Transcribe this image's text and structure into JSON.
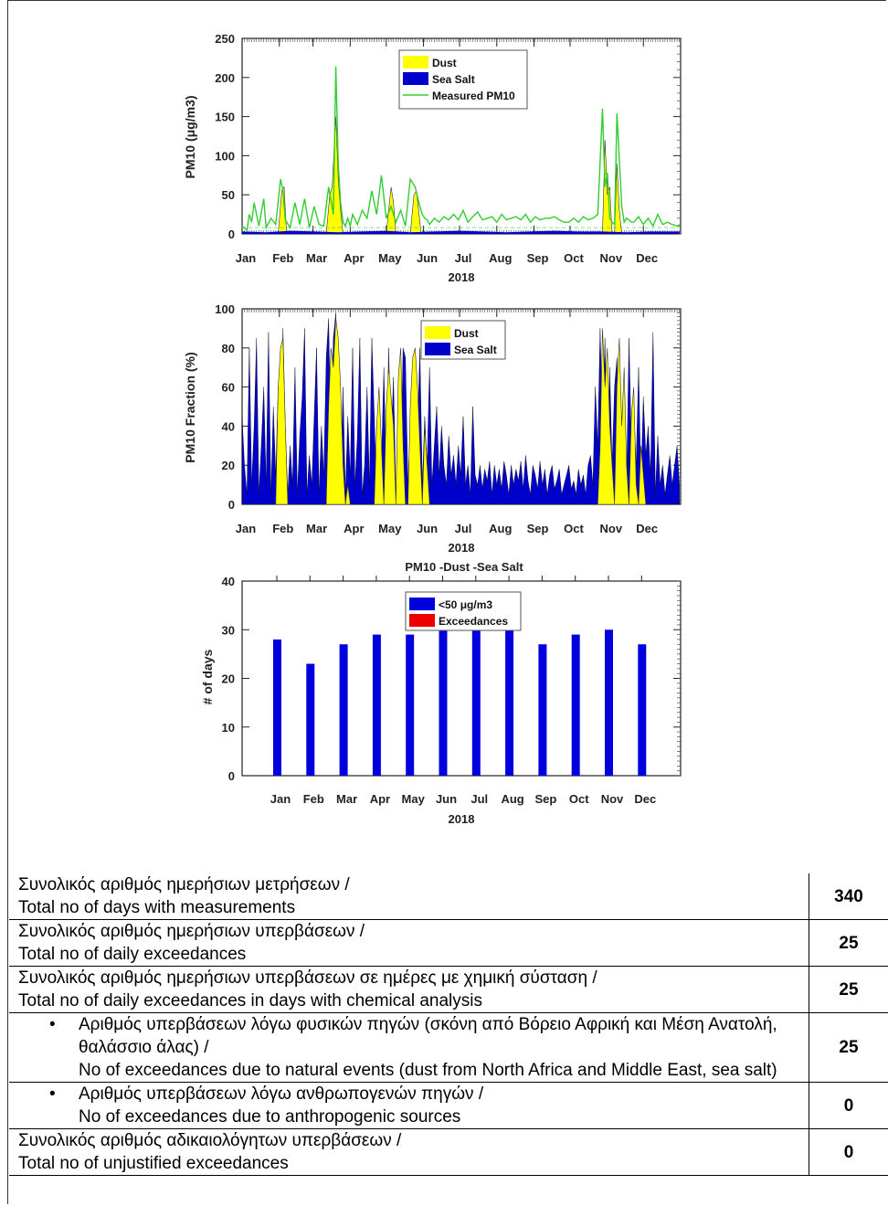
{
  "months": [
    "Jan",
    "Feb",
    "Mar",
    "Apr",
    "May",
    "Jun",
    "Jul",
    "Aug",
    "Sep",
    "Oct",
    "Nov",
    "Dec"
  ],
  "year": "2018",
  "colors": {
    "dust": "#ffff00",
    "sea_salt": "#0000cc",
    "measured": "#33cc33",
    "under50": "#0000dd",
    "exceed": "#ee0000"
  },
  "chart_data": [
    {
      "type": "area",
      "ylabel": "PM10 (μg/m3)",
      "xlabel": "2018",
      "ylim": [
        0,
        250
      ],
      "yticks": [
        0,
        50,
        100,
        150,
        200,
        250
      ],
      "legend": [
        "Dust",
        "Sea Salt",
        "Measured PM10"
      ],
      "legend_position": "top-center",
      "series": [
        {
          "name": "Measured PM10",
          "x": [
            0,
            4,
            6,
            8,
            10,
            14,
            18,
            20,
            24,
            28,
            32,
            34,
            36,
            40,
            44,
            48,
            52,
            56,
            60,
            64,
            68,
            72,
            76,
            78,
            80,
            82,
            84,
            86,
            88,
            90,
            92,
            96,
            100,
            104,
            108,
            112,
            116,
            120,
            124,
            128,
            132,
            136,
            140,
            144,
            148,
            150,
            152,
            154,
            156,
            160,
            164,
            168,
            172,
            176,
            180,
            184,
            188,
            192,
            196,
            200,
            204,
            208,
            212,
            216,
            220,
            224,
            228,
            232,
            236,
            240,
            244,
            248,
            252,
            256,
            260,
            264,
            268,
            272,
            276,
            280,
            284,
            288,
            292,
            296,
            300,
            302,
            304,
            306,
            308,
            310,
            312,
            316,
            318,
            320,
            322,
            324,
            326,
            330,
            334,
            338,
            342,
            346,
            350,
            354,
            358,
            362,
            364
          ],
          "y": [
            10,
            5,
            25,
            15,
            40,
            10,
            45,
            8,
            20,
            12,
            70,
            55,
            18,
            8,
            40,
            12,
            45,
            8,
            35,
            12,
            10,
            60,
            25,
            214,
            90,
            40,
            15,
            10,
            20,
            10,
            25,
            12,
            30,
            20,
            55,
            25,
            75,
            20,
            35,
            15,
            30,
            10,
            70,
            60,
            35,
            25,
            20,
            18,
            12,
            20,
            15,
            22,
            18,
            25,
            18,
            30,
            15,
            22,
            28,
            18,
            20,
            22,
            15,
            25,
            18,
            20,
            22,
            18,
            25,
            15,
            22,
            18,
            20,
            20,
            22,
            18,
            15,
            15,
            20,
            15,
            22,
            18,
            20,
            25,
            160,
            60,
            78,
            20,
            15,
            12,
            154,
            35,
            15,
            20,
            18,
            15,
            15,
            22,
            12,
            20,
            10,
            25,
            12,
            15,
            12,
            10,
            12
          ]
        },
        {
          "name": "Dust",
          "x": [
            0,
            30,
            33,
            35,
            37,
            70,
            73,
            75,
            78,
            80,
            82,
            84,
            120,
            122,
            124,
            126,
            128,
            140,
            143,
            145,
            147,
            149,
            300,
            302,
            304,
            306,
            308,
            310,
            312,
            314,
            316
          ],
          "y": [
            0,
            0,
            55,
            60,
            0,
            0,
            50,
            60,
            150,
            70,
            30,
            0,
            0,
            30,
            60,
            40,
            0,
            0,
            50,
            55,
            30,
            0,
            0,
            120,
            50,
            60,
            0,
            0,
            90,
            30,
            0
          ]
        },
        {
          "name": "Sea Salt",
          "x": [
            0,
            20,
            40,
            60,
            80,
            100,
            120,
            140,
            160,
            180,
            200,
            220,
            240,
            260,
            280,
            300,
            320,
            340,
            364
          ],
          "y": [
            3,
            2,
            4,
            3,
            2,
            3,
            4,
            2,
            3,
            4,
            3,
            2,
            3,
            4,
            3,
            3,
            2,
            3,
            3
          ]
        }
      ]
    },
    {
      "type": "area",
      "ylabel": "PM10 Fraction (%)",
      "xlabel": "2018",
      "ylim": [
        0,
        100
      ],
      "yticks": [
        0,
        20,
        40,
        60,
        80,
        100
      ],
      "legend": [
        "Dust",
        "Sea Salt"
      ],
      "legend_position": "top-center",
      "series": [
        {
          "name": "Sea Salt",
          "x": [
            0,
            2,
            4,
            6,
            8,
            10,
            12,
            14,
            16,
            18,
            20,
            22,
            24,
            26,
            28,
            30,
            32,
            34,
            36,
            38,
            40,
            42,
            44,
            46,
            48,
            50,
            52,
            54,
            56,
            58,
            60,
            62,
            64,
            66,
            68,
            70,
            72,
            74,
            76,
            78,
            80,
            82,
            84,
            86,
            88,
            90,
            92,
            94,
            96,
            98,
            100,
            102,
            104,
            106,
            108,
            110,
            112,
            114,
            116,
            118,
            120,
            122,
            124,
            126,
            128,
            130,
            132,
            134,
            136,
            138,
            140,
            142,
            144,
            146,
            148,
            150,
            152,
            154,
            156,
            158,
            160,
            162,
            164,
            166,
            168,
            170,
            172,
            174,
            176,
            178,
            180,
            182,
            184,
            186,
            188,
            190,
            192,
            194,
            196,
            198,
            200,
            202,
            204,
            206,
            208,
            210,
            212,
            214,
            216,
            218,
            220,
            222,
            224,
            226,
            228,
            230,
            232,
            234,
            236,
            238,
            240,
            242,
            244,
            246,
            248,
            250,
            252,
            254,
            256,
            258,
            260,
            262,
            264,
            266,
            268,
            270,
            272,
            274,
            276,
            278,
            280,
            282,
            284,
            286,
            288,
            290,
            292,
            294,
            296,
            298,
            300,
            302,
            304,
            306,
            308,
            310,
            312,
            314,
            316,
            318,
            320,
            322,
            324,
            326,
            328,
            330,
            332,
            334,
            336,
            338,
            340,
            342,
            344,
            346,
            348,
            350,
            352,
            354,
            356,
            358,
            360,
            362,
            364
          ],
          "y": [
            45,
            20,
            5,
            80,
            10,
            40,
            85,
            5,
            30,
            60,
            10,
            88,
            5,
            50,
            15,
            60,
            10,
            90,
            40,
            5,
            30,
            10,
            70,
            5,
            35,
            55,
            90,
            5,
            25,
            10,
            45,
            80,
            5,
            40,
            15,
            75,
            95,
            30,
            85,
            98,
            40,
            10,
            60,
            5,
            45,
            15,
            80,
            10,
            35,
            85,
            5,
            20,
            60,
            10,
            85,
            45,
            5,
            55,
            20,
            70,
            10,
            80,
            30,
            65,
            5,
            40,
            15,
            80,
            75,
            10,
            40,
            60,
            5,
            35,
            80,
            10,
            45,
            20,
            70,
            10,
            30,
            50,
            15,
            40,
            20,
            10,
            35,
            15,
            25,
            10,
            30,
            15,
            45,
            10,
            20,
            5,
            50,
            15,
            10,
            20,
            8,
            18,
            12,
            22,
            5,
            20,
            10,
            18,
            8,
            22,
            15,
            5,
            20,
            10,
            18,
            12,
            22,
            8,
            25,
            12,
            5,
            20,
            15,
            8,
            22,
            10,
            18,
            5,
            15,
            20,
            8,
            12,
            18,
            5,
            10,
            15,
            20,
            8,
            12,
            5,
            18,
            10,
            15,
            5,
            20,
            25,
            10,
            60,
            30,
            90,
            40,
            85,
            10,
            70,
            20,
            60,
            75,
            15,
            40,
            65,
            10,
            85,
            30,
            50,
            20,
            70,
            10,
            55,
            25,
            40,
            15,
            88,
            5,
            35,
            10,
            20,
            5,
            15,
            25,
            10,
            20,
            30,
            10
          ]
        },
        {
          "name": "Dust",
          "x": [
            0,
            28,
            30,
            32,
            34,
            36,
            38,
            70,
            72,
            74,
            76,
            78,
            80,
            82,
            84,
            86,
            88,
            90,
            110,
            112,
            114,
            116,
            118,
            120,
            122,
            124,
            126,
            128,
            130,
            132,
            134,
            136,
            138,
            140,
            142,
            144,
            146,
            148,
            150,
            152,
            154,
            156,
            296,
            298,
            300,
            302,
            304,
            306,
            308,
            310,
            312,
            314,
            316,
            318,
            320,
            322,
            324,
            326,
            328,
            330,
            332,
            334,
            336
          ],
          "y": [
            0,
            0,
            60,
            80,
            85,
            40,
            0,
            0,
            50,
            80,
            70,
            95,
            85,
            60,
            20,
            0,
            10,
            0,
            0,
            40,
            60,
            30,
            0,
            50,
            70,
            55,
            40,
            0,
            65,
            80,
            30,
            0,
            0,
            50,
            75,
            80,
            60,
            30,
            0,
            40,
            20,
            0,
            0,
            30,
            90,
            60,
            80,
            40,
            20,
            0,
            60,
            85,
            40,
            70,
            20,
            0,
            45,
            60,
            10,
            0,
            30,
            15,
            0
          ]
        }
      ]
    },
    {
      "type": "bar",
      "title": "PM10 -Dust -Sea Salt",
      "ylabel": "# of days",
      "xlabel": "2018",
      "ylim": [
        0,
        40
      ],
      "yticks": [
        0,
        10,
        20,
        30,
        40
      ],
      "categories": [
        "Jan",
        "Feb",
        "Mar",
        "Apr",
        "May",
        "Jun",
        "Jul",
        "Aug",
        "Sep",
        "Oct",
        "Nov",
        "Dec"
      ],
      "legend": [
        "<50 μg/m3",
        "Exceedances"
      ],
      "legend_position": "top-center",
      "series": [
        {
          "name": "<50 μg/m3",
          "values": [
            28,
            23,
            27,
            29,
            29,
            30,
            30,
            30,
            27,
            29,
            30,
            27
          ]
        },
        {
          "name": "Exceedances",
          "values": [
            0,
            0,
            0,
            0,
            0,
            0,
            0,
            0,
            0,
            0,
            0,
            0
          ]
        }
      ]
    }
  ],
  "stats_table": [
    {
      "gr": "Συνολικός αριθμός ημερήσιων μετρήσεων /",
      "en": "Total no of days with measurements",
      "value": "340",
      "bullet": false
    },
    {
      "gr": "Συνολικός αριθμός ημερήσιων υπερβάσεων /",
      "en": "Total no of daily exceedances",
      "value": "25",
      "bullet": false
    },
    {
      "gr": "Συνολικός αριθμός ημερήσιων υπερβάσεων σε ημέρες με χημική σύσταση /",
      "en": "Total no of daily exceedances in days with chemical analysis",
      "value": "25",
      "bullet": false
    },
    {
      "gr": "Αριθμός υπερβάσεων λόγω φυσικών πηγών (σκόνη από Βόρειο Αφρική και Μέση Ανατολή, θαλάσσιο άλας) /",
      "en": "No of exceedances due to natural events (dust from North Africa and Middle East, sea salt)",
      "value": "25",
      "bullet": true
    },
    {
      "gr": "Αριθμός υπερβάσεων λόγω ανθρωπογενών πηγών /",
      "en": "No of exceedances due to anthropogenic sources",
      "value": "0",
      "bullet": true
    },
    {
      "gr": "Συνολικός αριθμός αδικαιολόγητων υπερβάσεων /",
      "en": "Total no of unjustified exceedances",
      "value": "0",
      "bullet": false
    }
  ]
}
